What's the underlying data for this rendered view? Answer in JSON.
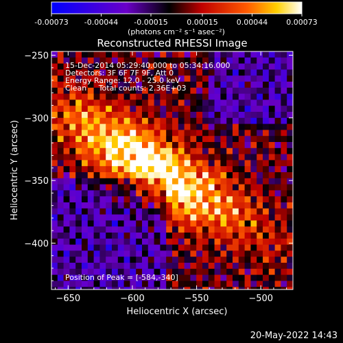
{
  "colorbar": {
    "ticks": [
      "-0.00073",
      "-0.00044",
      "-0.00015",
      "0.00015",
      "0.00044",
      "0.00073"
    ],
    "unit_label": "(photons cm⁻² s⁻¹ asec⁻²)"
  },
  "chart_data": {
    "type": "heatmap",
    "title": "Reconstructed RHESSI Image",
    "xlabel": "Heliocentric X (arcsec)",
    "ylabel": "Heliocentric Y (arcsec)",
    "xlim": [
      -663,
      -475
    ],
    "ylim": [
      -437,
      -247
    ],
    "x_ticks": [
      -650,
      -600,
      -550,
      -500
    ],
    "y_ticks": [
      -250,
      -300,
      -350,
      -400
    ],
    "color_range": [
      -0.00073,
      0.00073
    ],
    "peak": {
      "x": -584,
      "y": -340
    },
    "annotations": [
      "15-Dec-2014 05:29:40.000 to 05:34:16.000",
      "Detectors: 3F 6F 7F 9F, Att 0",
      "Energy Range: 12.0 - 25.0 keV",
      "Clean     Total counts: 2.36E+03"
    ],
    "peak_label": "Position of Peak = [-584,-340]"
  },
  "timestamp": "20-May-2022 14:43"
}
